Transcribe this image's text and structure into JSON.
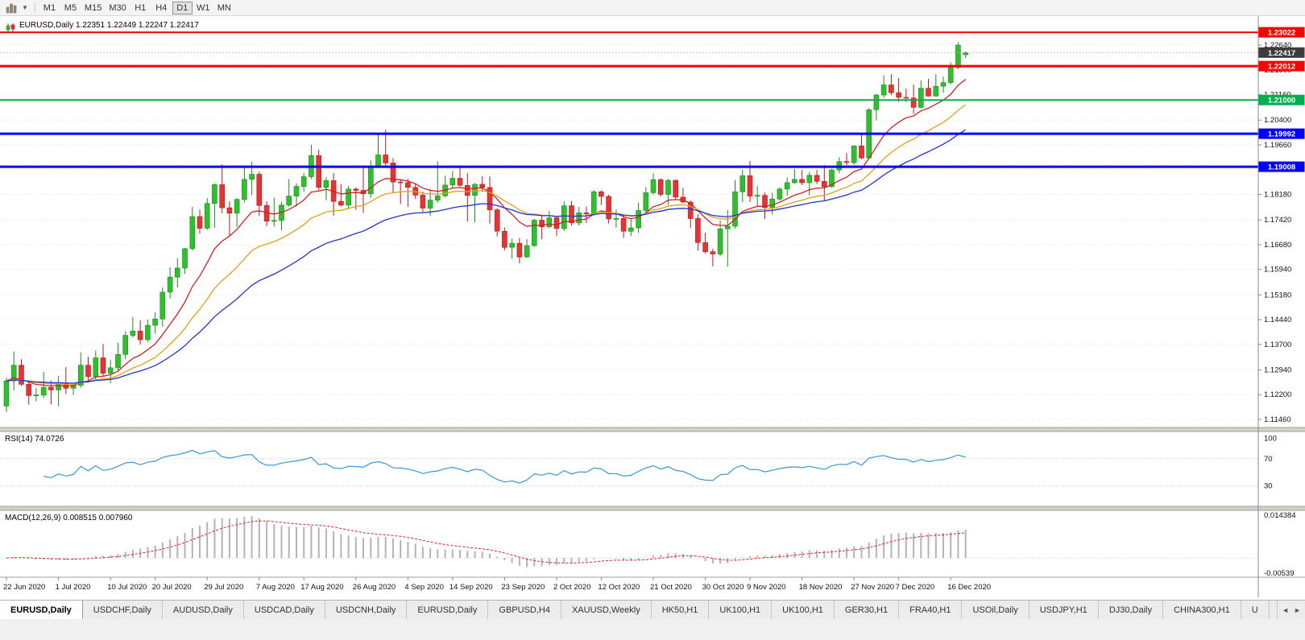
{
  "toolbar": {
    "timeframes": [
      "M1",
      "M5",
      "M15",
      "M30",
      "H1",
      "H4",
      "D1",
      "W1",
      "MN"
    ],
    "active_timeframe": "D1"
  },
  "chart": {
    "title": "EURUSD,Daily 1.22351 1.22449 1.22247 1.22417"
  },
  "chart_data": {
    "type": "candlestick",
    "symbol": "EURUSD",
    "period": "Daily",
    "ohlc_current": {
      "open": 1.22351,
      "high": 1.22449,
      "low": 1.22247,
      "close": 1.22417
    },
    "up_color": "#2fbf2f",
    "down_color": "#e43434",
    "y_axis_labels": [
      "1.22640",
      "1.21900",
      "1.21160",
      "1.20400",
      "1.19660",
      "1.18920",
      "1.18180",
      "1.17420",
      "1.16680",
      "1.15940",
      "1.15180",
      "1.14440",
      "1.13700",
      "1.12940",
      "1.12200",
      "1.11460"
    ],
    "x_labels": [
      {
        "text": "22 Jun 2020",
        "index": 0
      },
      {
        "text": "1 Jul 2020",
        "index": 7
      },
      {
        "text": "10 Jul 2020",
        "index": 14
      },
      {
        "text": "20 Jul 2020",
        "index": 20
      },
      {
        "text": "29 Jul 2020",
        "index": 27
      },
      {
        "text": "7 Aug 2020",
        "index": 34
      },
      {
        "text": "17 Aug 2020",
        "index": 40
      },
      {
        "text": "26 Aug 2020",
        "index": 47
      },
      {
        "text": "4 Sep 2020",
        "index": 54
      },
      {
        "text": "14 Sep 2020",
        "index": 60
      },
      {
        "text": "23 Sep 2020",
        "index": 67
      },
      {
        "text": "2 Oct 2020",
        "index": 74
      },
      {
        "text": "12 Oct 2020",
        "index": 80
      },
      {
        "text": "21 Oct 2020",
        "index": 87
      },
      {
        "text": "30 Oct 2020",
        "index": 94
      },
      {
        "text": "9 Nov 2020",
        "index": 100
      },
      {
        "text": "18 Nov 2020",
        "index": 107
      },
      {
        "text": "27 Nov 2020",
        "index": 114
      },
      {
        "text": "7 Dec 2020",
        "index": 120
      },
      {
        "text": "16 Dec 2020",
        "index": 127
      }
    ],
    "candles": [
      [
        1.1186,
        1.127,
        1.1168,
        1.1261
      ],
      [
        1.1261,
        1.1349,
        1.1233,
        1.1308
      ],
      [
        1.1308,
        1.1326,
        1.1246,
        1.1251
      ],
      [
        1.1251,
        1.1261,
        1.119,
        1.1217
      ],
      [
        1.1217,
        1.124,
        1.12,
        1.1219
      ],
      [
        1.1219,
        1.1288,
        1.121,
        1.1242
      ],
      [
        1.1242,
        1.1262,
        1.1191,
        1.1234
      ],
      [
        1.1234,
        1.1276,
        1.1185,
        1.1252
      ],
      [
        1.1252,
        1.1302,
        1.1223,
        1.1239
      ],
      [
        1.1239,
        1.1251,
        1.1219,
        1.1248
      ],
      [
        1.1248,
        1.1346,
        1.1241,
        1.1308
      ],
      [
        1.1308,
        1.1333,
        1.1259,
        1.1274
      ],
      [
        1.1274,
        1.1352,
        1.1266,
        1.133
      ],
      [
        1.133,
        1.1371,
        1.1275,
        1.1284
      ],
      [
        1.1284,
        1.1324,
        1.1254,
        1.13
      ],
      [
        1.13,
        1.1375,
        1.1292,
        1.134
      ],
      [
        1.134,
        1.1409,
        1.1325,
        1.1397
      ],
      [
        1.1397,
        1.1452,
        1.139,
        1.141
      ],
      [
        1.141,
        1.1442,
        1.137,
        1.1384
      ],
      [
        1.1384,
        1.1444,
        1.1377,
        1.1427
      ],
      [
        1.1427,
        1.1467,
        1.1402,
        1.1446
      ],
      [
        1.1446,
        1.154,
        1.1423,
        1.1526
      ],
      [
        1.1526,
        1.1601,
        1.1507,
        1.1571
      ],
      [
        1.1571,
        1.1627,
        1.154,
        1.1598
      ],
      [
        1.1598,
        1.1658,
        1.1581,
        1.1656
      ],
      [
        1.1656,
        1.1781,
        1.165,
        1.1752
      ],
      [
        1.1752,
        1.1773,
        1.1701,
        1.1717
      ],
      [
        1.1717,
        1.1807,
        1.1712,
        1.1791
      ],
      [
        1.1791,
        1.1851,
        1.1719,
        1.1847
      ],
      [
        1.1847,
        1.1908,
        1.1762,
        1.1778
      ],
      [
        1.1778,
        1.1797,
        1.1696,
        1.1762
      ],
      [
        1.1762,
        1.1807,
        1.1721,
        1.1803
      ],
      [
        1.1803,
        1.1904,
        1.1794,
        1.1863
      ],
      [
        1.1863,
        1.1916,
        1.1816,
        1.1878
      ],
      [
        1.1878,
        1.1886,
        1.1754,
        1.1785
      ],
      [
        1.1785,
        1.1798,
        1.1723,
        1.1738
      ],
      [
        1.1738,
        1.1808,
        1.1722,
        1.174
      ],
      [
        1.174,
        1.1796,
        1.1711,
        1.1786
      ],
      [
        1.1786,
        1.1864,
        1.1781,
        1.1813
      ],
      [
        1.1813,
        1.1851,
        1.1782,
        1.1842
      ],
      [
        1.1842,
        1.1882,
        1.1826,
        1.1871
      ],
      [
        1.1871,
        1.1966,
        1.1864,
        1.1934
      ],
      [
        1.1934,
        1.1952,
        1.183,
        1.1839
      ],
      [
        1.1839,
        1.1869,
        1.1801,
        1.1859
      ],
      [
        1.1859,
        1.1882,
        1.1754,
        1.1797
      ],
      [
        1.1797,
        1.1848,
        1.1782,
        1.1786
      ],
      [
        1.1786,
        1.1843,
        1.1774,
        1.1834
      ],
      [
        1.1834,
        1.1839,
        1.1772,
        1.183
      ],
      [
        1.183,
        1.19,
        1.1763,
        1.182
      ],
      [
        1.182,
        1.192,
        1.1808,
        1.1903
      ],
      [
        1.1903,
        1.1997,
        1.1898,
        1.1936
      ],
      [
        1.1936,
        1.2011,
        1.1901,
        1.1912
      ],
      [
        1.1912,
        1.1927,
        1.1823,
        1.1855
      ],
      [
        1.1855,
        1.1864,
        1.1789,
        1.1853
      ],
      [
        1.1853,
        1.1865,
        1.1781,
        1.1839
      ],
      [
        1.1839,
        1.1849,
        1.1804,
        1.1816
      ],
      [
        1.1816,
        1.1827,
        1.1766,
        1.1777
      ],
      [
        1.1777,
        1.1834,
        1.1754,
        1.1801
      ],
      [
        1.1801,
        1.1917,
        1.1793,
        1.1814
      ],
      [
        1.1814,
        1.1874,
        1.1809,
        1.1846
      ],
      [
        1.1846,
        1.1888,
        1.1836,
        1.1866
      ],
      [
        1.1866,
        1.19,
        1.1841,
        1.1845
      ],
      [
        1.1845,
        1.1882,
        1.1737,
        1.1815
      ],
      [
        1.1815,
        1.1852,
        1.1736,
        1.1848
      ],
      [
        1.1848,
        1.1872,
        1.1826,
        1.1839
      ],
      [
        1.1839,
        1.1872,
        1.1731,
        1.1772
      ],
      [
        1.1772,
        1.1777,
        1.1692,
        1.1708
      ],
      [
        1.1708,
        1.1719,
        1.1651,
        1.166
      ],
      [
        1.166,
        1.1686,
        1.1626,
        1.1672
      ],
      [
        1.1672,
        1.1688,
        1.1612,
        1.1631
      ],
      [
        1.1631,
        1.1684,
        1.1628,
        1.1665
      ],
      [
        1.1665,
        1.1745,
        1.1661,
        1.1741
      ],
      [
        1.1741,
        1.1755,
        1.1684,
        1.1721
      ],
      [
        1.1721,
        1.1769,
        1.1717,
        1.1748
      ],
      [
        1.1748,
        1.1752,
        1.1695,
        1.1716
      ],
      [
        1.1716,
        1.1797,
        1.1709,
        1.1784
      ],
      [
        1.1784,
        1.1798,
        1.1725,
        1.1733
      ],
      [
        1.1733,
        1.1781,
        1.1725,
        1.1763
      ],
      [
        1.1763,
        1.1782,
        1.1733,
        1.176
      ],
      [
        1.176,
        1.1831,
        1.1754,
        1.1826
      ],
      [
        1.1826,
        1.183,
        1.1786,
        1.1812
      ],
      [
        1.1812,
        1.1817,
        1.1731,
        1.1745
      ],
      [
        1.1745,
        1.1772,
        1.1719,
        1.1746
      ],
      [
        1.1746,
        1.1758,
        1.1688,
        1.1708
      ],
      [
        1.1708,
        1.1746,
        1.1694,
        1.1718
      ],
      [
        1.1718,
        1.1794,
        1.1703,
        1.177
      ],
      [
        1.177,
        1.184,
        1.176,
        1.1823
      ],
      [
        1.1823,
        1.1881,
        1.1817,
        1.1862
      ],
      [
        1.1862,
        1.1866,
        1.1812,
        1.1818
      ],
      [
        1.1818,
        1.1864,
        1.1787,
        1.186
      ],
      [
        1.186,
        1.1862,
        1.1803,
        1.181
      ],
      [
        1.181,
        1.1838,
        1.1793,
        1.1795
      ],
      [
        1.1795,
        1.18,
        1.1717,
        1.1746
      ],
      [
        1.1746,
        1.1759,
        1.165,
        1.1674
      ],
      [
        1.1674,
        1.1704,
        1.164,
        1.1647
      ],
      [
        1.1647,
        1.1656,
        1.1603,
        1.164
      ],
      [
        1.164,
        1.174,
        1.1633,
        1.1715
      ],
      [
        1.1715,
        1.1771,
        1.1602,
        1.1723
      ],
      [
        1.1723,
        1.1861,
        1.1716,
        1.1826
      ],
      [
        1.1826,
        1.1891,
        1.1795,
        1.1874
      ],
      [
        1.1874,
        1.1918,
        1.1795,
        1.1813
      ],
      [
        1.1813,
        1.1843,
        1.1781,
        1.1815
      ],
      [
        1.1815,
        1.1823,
        1.1745,
        1.1779
      ],
      [
        1.1779,
        1.1823,
        1.1758,
        1.1804
      ],
      [
        1.1804,
        1.1839,
        1.1799,
        1.1834
      ],
      [
        1.1834,
        1.1869,
        1.1814,
        1.1853
      ],
      [
        1.1853,
        1.1894,
        1.185,
        1.1863
      ],
      [
        1.1863,
        1.1891,
        1.1846,
        1.1853
      ],
      [
        1.1853,
        1.1885,
        1.1815,
        1.1875
      ],
      [
        1.1875,
        1.1891,
        1.1849,
        1.1857
      ],
      [
        1.1857,
        1.1906,
        1.18,
        1.1841
      ],
      [
        1.1841,
        1.1895,
        1.1838,
        1.1891
      ],
      [
        1.1891,
        1.1929,
        1.1881,
        1.1916
      ],
      [
        1.1916,
        1.1941,
        1.1905,
        1.1913
      ],
      [
        1.1913,
        1.1964,
        1.1907,
        1.1963
      ],
      [
        1.1963,
        1.2003,
        1.1923,
        1.1927
      ],
      [
        1.1927,
        1.2076,
        1.1924,
        1.2071
      ],
      [
        1.2071,
        1.2118,
        1.2039,
        1.2115
      ],
      [
        1.2115,
        1.2174,
        1.2106,
        1.2145
      ],
      [
        1.2145,
        1.2177,
        1.2115,
        1.2122
      ],
      [
        1.2122,
        1.2166,
        1.2095,
        1.2108
      ],
      [
        1.2108,
        1.2134,
        1.2094,
        1.2106
      ],
      [
        1.2106,
        1.2146,
        1.2058,
        1.2078
      ],
      [
        1.2078,
        1.2159,
        1.2075,
        1.2135
      ],
      [
        1.2135,
        1.2163,
        1.211,
        1.2112
      ],
      [
        1.2112,
        1.2177,
        1.211,
        1.2141
      ],
      [
        1.2141,
        1.217,
        1.2122,
        1.2152
      ],
      [
        1.2152,
        1.2212,
        1.2146,
        1.2197
      ],
      [
        1.2197,
        1.2273,
        1.2192,
        1.2264
      ],
      [
        1.22351,
        1.22449,
        1.22247,
        1.22417
      ]
    ],
    "moving_averages": [
      {
        "name": "ma-fast",
        "period": 10,
        "color": "#cc2222"
      },
      {
        "name": "ma-mid",
        "period": 20,
        "color": "#e0a01a"
      },
      {
        "name": "ma-slow",
        "period": 34,
        "color": "#2233cc"
      }
    ],
    "hlines": [
      {
        "price": 1.23022,
        "label": "1.23022",
        "color": "#ff0000",
        "width": 2
      },
      {
        "price": 1.22012,
        "label": "1.22012",
        "color": "#ff0000",
        "width": 3
      },
      {
        "price": 1.21,
        "label": "1.21000",
        "color": "#00b050",
        "width": 2
      },
      {
        "price": 1.19992,
        "label": "1.19992",
        "color": "#0000ff",
        "width": 3
      },
      {
        "price": 1.19008,
        "label": "1.19008",
        "color": "#0000ff",
        "width": 3
      }
    ],
    "current_price": {
      "value": 1.22417,
      "label": "1.22417",
      "badge_color": "#3c3c3c"
    },
    "indicators": {
      "rsi": {
        "label": "RSI(14) 74.0726",
        "period": 14,
        "value": 74.0726,
        "levels": [
          70,
          30
        ],
        "axis_labels": [
          "100",
          "70",
          "30"
        ],
        "color": "#3b97d3"
      },
      "macd": {
        "label": "MACD(12,26,9) 0.008515 0.007960",
        "fast": 12,
        "slow": 26,
        "signal": 9,
        "value": 0.008515,
        "signal_value": 0.00796,
        "axis_max": 0.014384,
        "axis_min": -0.00539,
        "axis_labels": [
          "0.014384",
          "-0.00539"
        ],
        "bar_color": "#b4b4b4",
        "signal_color": "#dd2222"
      }
    }
  },
  "tabs": {
    "scroll_left": "◄",
    "scroll_right": "►",
    "items": [
      {
        "label": "EURUSD,Daily",
        "active": true
      },
      {
        "label": "USDCHF,Daily",
        "active": false
      },
      {
        "label": "AUDUSD,Daily",
        "active": false
      },
      {
        "label": "USDCAD,Daily",
        "active": false
      },
      {
        "label": "USDCNH,Daily",
        "active": false
      },
      {
        "label": "EURUSD,Daily",
        "active": false
      },
      {
        "label": "GBPUSD,H4",
        "active": false
      },
      {
        "label": "XAUUSD,Weekly",
        "active": false
      },
      {
        "label": "HK50,H1",
        "active": false
      },
      {
        "label": "UK100,H1",
        "active": false
      },
      {
        "label": "UK100,H1",
        "active": false
      },
      {
        "label": "GER30,H1",
        "active": false
      },
      {
        "label": "FRA40,H1",
        "active": false
      },
      {
        "label": "USOil,Daily",
        "active": false
      },
      {
        "label": "USDJPY,H1",
        "active": false
      },
      {
        "label": "DJ30,Daily",
        "active": false
      },
      {
        "label": "CHINA300,H1",
        "active": false
      },
      {
        "label": "U",
        "active": false
      }
    ]
  }
}
